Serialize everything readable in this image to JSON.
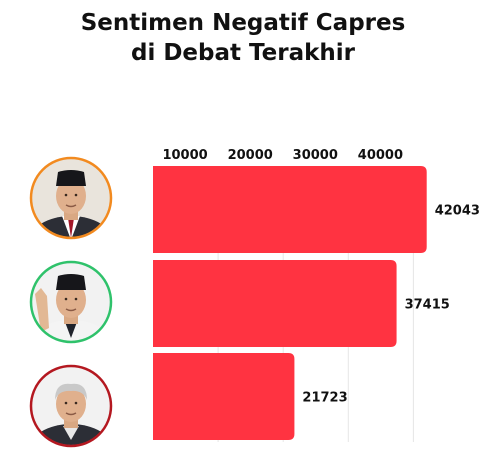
{
  "title_lines": [
    "Sentimen Negatif Capres",
    "di Debat Terakhir"
  ],
  "colors": {
    "bar": "#ff3341",
    "grid": "#e6e6e6",
    "ring_1": "#f28a1f",
    "ring_2": "#2fc26b",
    "ring_3": "#b41820"
  },
  "chart_data": {
    "type": "bar",
    "orientation": "horizontal",
    "title": "Sentimen Negatif Capres di Debat Terakhir",
    "categories": [
      "",
      "",
      ""
    ],
    "values": [
      42043,
      37415,
      21723
    ],
    "xlim": [
      0,
      45000
    ],
    "xticks": [
      10000,
      20000,
      30000,
      40000
    ],
    "xaxis_position": "top",
    "grid": true,
    "data_labels": [
      "42043",
      "37415",
      "21723"
    ],
    "category_images": [
      "portrait-1",
      "portrait-2",
      "portrait-3"
    ]
  }
}
